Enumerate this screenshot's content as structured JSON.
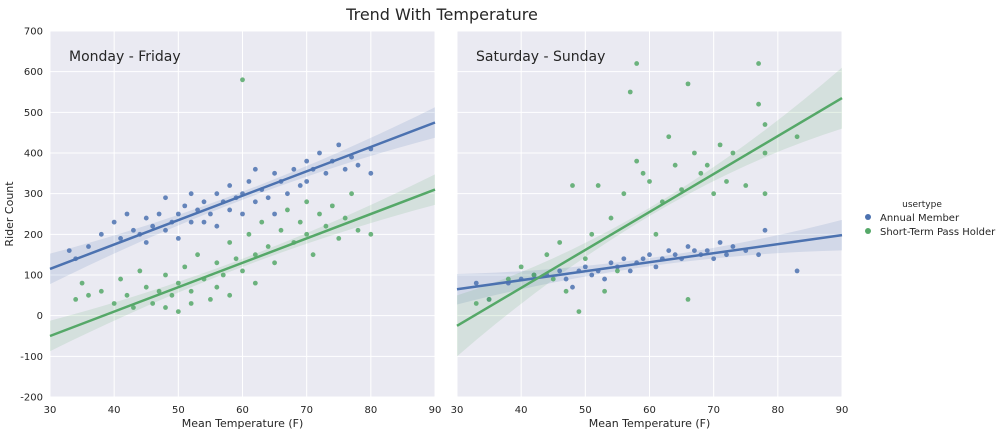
{
  "figure": {
    "title": "Trend With Temperature"
  },
  "legend": {
    "title": "usertype",
    "placement": "right",
    "entries": [
      {
        "label": "Annual Member",
        "color": "#4c72b0"
      },
      {
        "label": "Short-Term Pass Holder",
        "color": "#55a868"
      }
    ]
  },
  "colors": {
    "annual": "#4c72b0",
    "short": "#55a868",
    "panel_bg": "#eaeaf2",
    "grid": "#ffffff"
  },
  "chart_data": [
    {
      "type": "scatter",
      "panel_label": "Monday - Friday",
      "xlabel": "Mean Temperature (F)",
      "ylabel": "Rider Count",
      "xlim": [
        30,
        90
      ],
      "ylim": [
        -200,
        700
      ],
      "xticks": [
        30,
        40,
        50,
        60,
        70,
        80,
        90
      ],
      "yticks": [
        -200,
        -100,
        0,
        100,
        200,
        300,
        400,
        500,
        600,
        700
      ],
      "grid": true,
      "series": [
        {
          "name": "Annual Member",
          "trend": {
            "x": [
              30,
              90
            ],
            "y": [
              115,
              475
            ]
          },
          "points": [
            [
              33,
              160
            ],
            [
              34,
              140
            ],
            [
              36,
              170
            ],
            [
              38,
              200
            ],
            [
              40,
              230
            ],
            [
              41,
              190
            ],
            [
              42,
              250
            ],
            [
              43,
              210
            ],
            [
              44,
              200
            ],
            [
              45,
              240
            ],
            [
              45,
              180
            ],
            [
              46,
              220
            ],
            [
              47,
              250
            ],
            [
              48,
              290
            ],
            [
              48,
              210
            ],
            [
              49,
              230
            ],
            [
              50,
              250
            ],
            [
              50,
              190
            ],
            [
              51,
              270
            ],
            [
              52,
              230
            ],
            [
              52,
              300
            ],
            [
              53,
              260
            ],
            [
              54,
              230
            ],
            [
              54,
              280
            ],
            [
              55,
              250
            ],
            [
              56,
              300
            ],
            [
              56,
              220
            ],
            [
              57,
              280
            ],
            [
              58,
              260
            ],
            [
              58,
              320
            ],
            [
              59,
              290
            ],
            [
              60,
              300
            ],
            [
              60,
              250
            ],
            [
              61,
              330
            ],
            [
              62,
              280
            ],
            [
              62,
              360
            ],
            [
              63,
              310
            ],
            [
              64,
              290
            ],
            [
              65,
              350
            ],
            [
              65,
              250
            ],
            [
              66,
              330
            ],
            [
              67,
              300
            ],
            [
              68,
              360
            ],
            [
              69,
              320
            ],
            [
              70,
              380
            ],
            [
              70,
              330
            ],
            [
              71,
              360
            ],
            [
              72,
              400
            ],
            [
              73,
              350
            ],
            [
              74,
              380
            ],
            [
              75,
              420
            ],
            [
              76,
              360
            ],
            [
              77,
              390
            ],
            [
              78,
              370
            ],
            [
              80,
              410
            ],
            [
              80,
              350
            ]
          ]
        },
        {
          "name": "Short-Term Pass Holder",
          "trend": {
            "x": [
              30,
              90
            ],
            "y": [
              -50,
              310
            ]
          },
          "points": [
            [
              34,
              40
            ],
            [
              35,
              80
            ],
            [
              36,
              50
            ],
            [
              38,
              60
            ],
            [
              40,
              30
            ],
            [
              41,
              90
            ],
            [
              42,
              50
            ],
            [
              43,
              20
            ],
            [
              44,
              110
            ],
            [
              45,
              70
            ],
            [
              46,
              30
            ],
            [
              47,
              60
            ],
            [
              48,
              100
            ],
            [
              48,
              20
            ],
            [
              49,
              50
            ],
            [
              50,
              80
            ],
            [
              50,
              10
            ],
            [
              51,
              120
            ],
            [
              52,
              60
            ],
            [
              52,
              30
            ],
            [
              53,
              150
            ],
            [
              54,
              90
            ],
            [
              55,
              40
            ],
            [
              56,
              130
            ],
            [
              56,
              70
            ],
            [
              57,
              100
            ],
            [
              58,
              180
            ],
            [
              58,
              50
            ],
            [
              59,
              140
            ],
            [
              60,
              580
            ],
            [
              60,
              110
            ],
            [
              61,
              200
            ],
            [
              62,
              150
            ],
            [
              62,
              80
            ],
            [
              63,
              230
            ],
            [
              64,
              170
            ],
            [
              65,
              130
            ],
            [
              66,
              210
            ],
            [
              67,
              260
            ],
            [
              68,
              180
            ],
            [
              69,
              230
            ],
            [
              70,
              280
            ],
            [
              70,
              200
            ],
            [
              71,
              150
            ],
            [
              72,
              250
            ],
            [
              73,
              220
            ],
            [
              74,
              270
            ],
            [
              75,
              190
            ],
            [
              76,
              240
            ],
            [
              77,
              300
            ],
            [
              78,
              210
            ],
            [
              80,
              200
            ]
          ]
        }
      ]
    },
    {
      "type": "scatter",
      "panel_label": "Saturday - Sunday",
      "xlabel": "Mean Temperature (F)",
      "ylabel": "",
      "xlim": [
        30,
        90
      ],
      "ylim": [
        -200,
        700
      ],
      "xticks": [
        30,
        40,
        50,
        60,
        70,
        80,
        90
      ],
      "yticks": [
        -200,
        -100,
        0,
        100,
        200,
        300,
        400,
        500,
        600,
        700
      ],
      "grid": true,
      "series": [
        {
          "name": "Annual Member",
          "trend": {
            "x": [
              30,
              90
            ],
            "y": [
              65,
              198
            ]
          },
          "points": [
            [
              33,
              80
            ],
            [
              35,
              40
            ],
            [
              38,
              80
            ],
            [
              40,
              90
            ],
            [
              42,
              100
            ],
            [
              44,
              100
            ],
            [
              46,
              110
            ],
            [
              47,
              90
            ],
            [
              48,
              70
            ],
            [
              49,
              110
            ],
            [
              50,
              120
            ],
            [
              51,
              100
            ],
            [
              52,
              110
            ],
            [
              53,
              90
            ],
            [
              54,
              130
            ],
            [
              55,
              120
            ],
            [
              56,
              140
            ],
            [
              57,
              110
            ],
            [
              58,
              130
            ],
            [
              59,
              140
            ],
            [
              60,
              150
            ],
            [
              61,
              120
            ],
            [
              62,
              140
            ],
            [
              63,
              160
            ],
            [
              64,
              150
            ],
            [
              65,
              140
            ],
            [
              66,
              170
            ],
            [
              67,
              160
            ],
            [
              68,
              150
            ],
            [
              69,
              160
            ],
            [
              70,
              140
            ],
            [
              71,
              180
            ],
            [
              72,
              150
            ],
            [
              73,
              170
            ],
            [
              75,
              160
            ],
            [
              77,
              150
            ],
            [
              78,
              210
            ],
            [
              83,
              110
            ]
          ]
        },
        {
          "name": "Short-Term Pass Holder",
          "trend": {
            "x": [
              30,
              90
            ],
            "y": [
              -25,
              535
            ]
          },
          "points": [
            [
              33,
              30
            ],
            [
              35,
              40
            ],
            [
              38,
              90
            ],
            [
              40,
              120
            ],
            [
              42,
              100
            ],
            [
              44,
              150
            ],
            [
              45,
              90
            ],
            [
              46,
              180
            ],
            [
              47,
              60
            ],
            [
              48,
              320
            ],
            [
              49,
              10
            ],
            [
              50,
              140
            ],
            [
              51,
              200
            ],
            [
              52,
              320
            ],
            [
              53,
              60
            ],
            [
              54,
              240
            ],
            [
              55,
              110
            ],
            [
              56,
              300
            ],
            [
              57,
              550
            ],
            [
              58,
              620
            ],
            [
              58,
              380
            ],
            [
              59,
              350
            ],
            [
              60,
              330
            ],
            [
              61,
              200
            ],
            [
              62,
              280
            ],
            [
              63,
              440
            ],
            [
              64,
              370
            ],
            [
              65,
              310
            ],
            [
              66,
              570
            ],
            [
              66,
              40
            ],
            [
              67,
              400
            ],
            [
              68,
              350
            ],
            [
              69,
              370
            ],
            [
              70,
              300
            ],
            [
              71,
              420
            ],
            [
              72,
              330
            ],
            [
              73,
              400
            ],
            [
              75,
              320
            ],
            [
              77,
              620
            ],
            [
              77,
              520
            ],
            [
              78,
              470
            ],
            [
              78,
              400
            ],
            [
              78,
              300
            ],
            [
              83,
              440
            ]
          ]
        }
      ]
    }
  ]
}
